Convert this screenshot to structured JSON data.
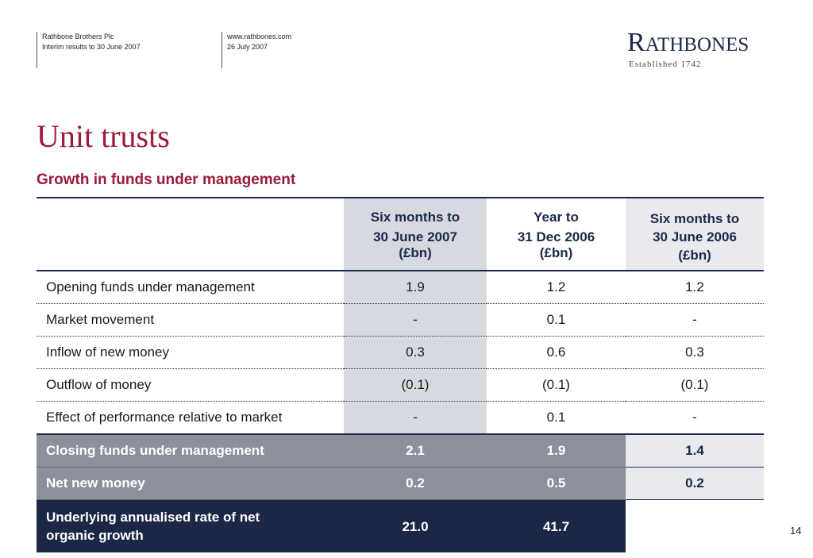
{
  "header": {
    "left_line1": "Rathbone Brothers Plc",
    "left_line2": "Interim results to 30 June 2007",
    "mid_line1": "www.rathbones.com",
    "mid_line2": "26 July 2007"
  },
  "logo": {
    "name_R": "R",
    "name_rest": "ATHBONES",
    "tagline": "Established 1742"
  },
  "title": "Unit trusts",
  "subtitle": "Growth in funds under management",
  "table": {
    "columns": [
      {
        "line1": "Six months to",
        "line2": "30 June 2007",
        "line3": "(£bn)"
      },
      {
        "line1": "Year to",
        "line2": "31 Dec 2006",
        "line3": "(£bn)"
      },
      {
        "line1": "Six months to",
        "line2": "30 June 2006",
        "line3": "(£bn)"
      }
    ],
    "rows": [
      {
        "label": "Opening funds under management",
        "values": [
          "1.9",
          "1.2",
          "1.2"
        ]
      },
      {
        "label": "Market movement",
        "values": [
          "-",
          "0.1",
          "-"
        ]
      },
      {
        "label": "Inflow of new money",
        "values": [
          "0.3",
          "0.6",
          "0.3"
        ]
      },
      {
        "label": "Outflow of money",
        "values": [
          "(0.1)",
          "(0.1)",
          "(0.1)"
        ]
      },
      {
        "label": "Effect of performance relative to market",
        "values": [
          "-",
          "0.1",
          "-"
        ]
      }
    ],
    "summary_rows": [
      {
        "label": "Closing funds under management",
        "values": [
          "2.1",
          "1.9",
          "1.4"
        ]
      },
      {
        "label": "Net new money",
        "values": [
          "0.2",
          "0.5",
          "0.2"
        ]
      }
    ],
    "growth_row": {
      "label_line1": "Underlying annualised rate of net",
      "label_line2": "organic growth",
      "values": [
        "21.0",
        "41.7",
        ""
      ]
    }
  },
  "page_number": "14",
  "colors": {
    "brand_navy": "#1b2a4a",
    "title_red": "#9b1b3a",
    "summary_grey": "#8b909b",
    "dark_navy": "#1b2745"
  }
}
